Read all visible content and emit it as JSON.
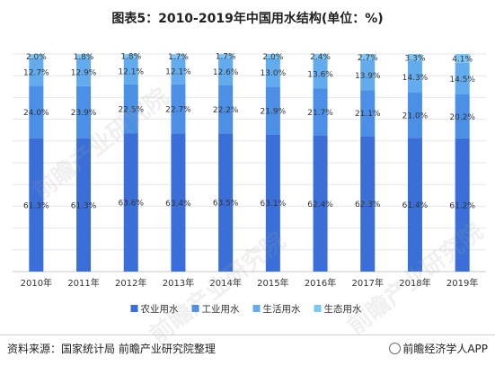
{
  "chart_data": {
    "type": "bar",
    "stacked": true,
    "title": "图表5：2010-2019年中国用水结构(单位：%)",
    "categories": [
      "2010年",
      "2011年",
      "2012年",
      "2013年",
      "2014年",
      "2015年",
      "2016年",
      "2017年",
      "2018年",
      "2019年"
    ],
    "series": [
      {
        "name": "农业用水",
        "color": "#3a6fd8",
        "values": [
          61.3,
          61.3,
          63.6,
          63.4,
          63.5,
          63.1,
          62.4,
          62.3,
          61.4,
          61.2
        ]
      },
      {
        "name": "工业用水",
        "color": "#4b8fe6",
        "values": [
          24.0,
          23.9,
          22.5,
          22.7,
          22.2,
          21.9,
          21.7,
          21.1,
          21.0,
          20.2
        ]
      },
      {
        "name": "生活用水",
        "color": "#62abee",
        "values": [
          12.7,
          12.9,
          12.1,
          12.1,
          12.6,
          13.0,
          13.6,
          13.9,
          14.3,
          14.5
        ]
      },
      {
        "name": "生态用水",
        "color": "#7ec6f3",
        "values": [
          2.0,
          1.8,
          1.8,
          1.7,
          1.7,
          2.0,
          2.4,
          2.7,
          3.3,
          4.1
        ]
      }
    ],
    "ylim": [
      0,
      100
    ],
    "legend_position": "bottom",
    "grid": true
  },
  "footer": {
    "source": "资料来源：国家统计局 前瞻产业研究院整理",
    "brand": "前瞻经济学人APP"
  },
  "watermark": {
    "text": "前瞻产业研究院"
  }
}
